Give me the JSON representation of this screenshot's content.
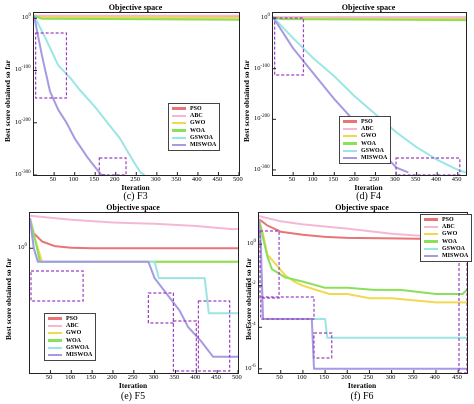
{
  "chart_data": [
    {
      "id": "F3",
      "type": "line",
      "title": "Objective space",
      "caption": "(c) F3",
      "xlabel": "Iteration",
      "ylabel": "Best score obtained so far",
      "xlim": [
        1,
        500
      ],
      "ylim_exponent": [
        -300,
        10
      ],
      "yscale": "log",
      "xticks": [
        "50",
        "100",
        "150",
        "200",
        "250",
        "300",
        "350",
        "400",
        "450",
        "500"
      ],
      "yticks": [
        "10^0",
        "10^-100",
        "10^-200",
        "10^-300"
      ],
      "ytick_values": [
        0,
        -100,
        -200,
        -300
      ],
      "legend": [
        "PSO",
        "ABC",
        "GWO",
        "WOA",
        "GSWOA",
        "MISWOA"
      ],
      "legend_position": "center-right",
      "series": [
        {
          "name": "PSO",
          "x": [
            1,
            10,
            500
          ],
          "y_exp": [
            5,
            3,
            3
          ]
        },
        {
          "name": "ABC",
          "x": [
            1,
            500
          ],
          "y_exp": [
            5,
            5
          ]
        },
        {
          "name": "GWO",
          "x": [
            1,
            15,
            500
          ],
          "y_exp": [
            5,
            2,
            1
          ]
        },
        {
          "name": "WOA",
          "x": [
            1,
            20,
            500
          ],
          "y_exp": [
            5,
            -1,
            -3
          ]
        },
        {
          "name": "GSWOA",
          "x": [
            1,
            30,
            60,
            90,
            110,
            150,
            180,
            210,
            240,
            260,
            270
          ],
          "y_exp": [
            5,
            -40,
            -90,
            -115,
            -135,
            -170,
            -200,
            -230,
            -270,
            -295,
            -300
          ]
        },
        {
          "name": "MISWOA",
          "x": [
            1,
            20,
            40,
            60,
            80,
            100,
            130,
            150,
            165,
            175
          ],
          "y_exp": [
            5,
            -70,
            -140,
            -175,
            -200,
            -230,
            -265,
            -285,
            -300,
            -300
          ]
        }
      ]
    },
    {
      "id": "F4",
      "type": "line",
      "title": "Objective space",
      "caption": "(d) F4",
      "xlabel": "Iteration",
      "ylabel": "Best score obtained so far",
      "xlim": [
        1,
        470
      ],
      "ylim_exponent": [
        -310,
        10
      ],
      "yscale": "log",
      "xticks": [
        "50",
        "100",
        "150",
        "200",
        "250",
        "300",
        "350",
        "400",
        "450"
      ],
      "yticks": [
        "10^0",
        "10^-100",
        "10^-200",
        "10^-300"
      ],
      "ytick_values": [
        0,
        -100,
        -200,
        -300
      ],
      "legend": [
        "PSO",
        "ABC",
        "GWO",
        "WOA",
        "GSWOA",
        "MISWOA"
      ],
      "legend_position": "center",
      "series": [
        {
          "name": "PSO",
          "x": [
            1,
            10,
            470
          ],
          "y_exp": [
            2,
            0,
            0
          ]
        },
        {
          "name": "ABC",
          "x": [
            1,
            470
          ],
          "y_exp": [
            2,
            2
          ]
        },
        {
          "name": "GWO",
          "x": [
            1,
            15,
            470
          ],
          "y_exp": [
            2,
            -1,
            -2
          ]
        },
        {
          "name": "WOA",
          "x": [
            1,
            20,
            470
          ],
          "y_exp": [
            2,
            -2,
            -4
          ]
        },
        {
          "name": "GSWOA",
          "x": [
            1,
            50,
            100,
            150,
            200,
            250,
            300,
            350,
            400,
            450,
            470
          ],
          "y_exp": [
            2,
            -40,
            -80,
            -115,
            -155,
            -190,
            -225,
            -255,
            -280,
            -300,
            -305
          ]
        },
        {
          "name": "MISWOA",
          "x": [
            1,
            50,
            100,
            150,
            200,
            250,
            300,
            330
          ],
          "y_exp": [
            2,
            -60,
            -110,
            -160,
            -205,
            -250,
            -295,
            -305
          ]
        }
      ]
    },
    {
      "id": "F5",
      "type": "line",
      "title": "Objective space",
      "caption": "(e) F5",
      "xlabel": "Iteration",
      "ylabel": "Best score obtained so far",
      "xlim": [
        1,
        500
      ],
      "ylim_exponent": [
        -4.6,
        1.3
      ],
      "yscale": "log",
      "xticks": [
        "50",
        "100",
        "150",
        "200",
        "250",
        "300",
        "350",
        "400",
        "450",
        "500"
      ],
      "yticks": [
        "10^0"
      ],
      "ytick_values": [
        0
      ],
      "legend": [
        "PSO",
        "ABC",
        "GWO",
        "WOA",
        "GSWOA",
        "MISWOA"
      ],
      "legend_position": "bottom-left",
      "series": [
        {
          "name": "PSO",
          "x": [
            1,
            10,
            30,
            60,
            100,
            150,
            500
          ],
          "y_exp": [
            1.1,
            0.55,
            0.25,
            0.08,
            0.02,
            0.0,
            0.0
          ]
        },
        {
          "name": "ABC",
          "x": [
            1,
            100,
            200,
            300,
            400,
            450,
            490,
            500
          ],
          "y_exp": [
            1.2,
            1.05,
            0.95,
            0.9,
            0.82,
            0.75,
            0.7,
            0.72
          ]
        },
        {
          "name": "GWO",
          "x": [
            1,
            10,
            20,
            30,
            500
          ],
          "y_exp": [
            1.1,
            0.5,
            0.0,
            -0.5,
            -0.5
          ]
        },
        {
          "name": "WOA",
          "x": [
            1,
            15,
            25,
            500
          ],
          "y_exp": [
            1.1,
            0.2,
            -0.5,
            -0.5
          ]
        },
        {
          "name": "GSWOA",
          "x": [
            1,
            10,
            20,
            300,
            310,
            420,
            430,
            500
          ],
          "y_exp": [
            1.1,
            0.0,
            -0.5,
            -0.5,
            -1.1,
            -1.1,
            -2.4,
            -2.4
          ]
        },
        {
          "name": "MISWOA",
          "x": [
            1,
            10,
            20,
            285,
            300,
            330,
            360,
            380,
            410,
            440,
            500
          ],
          "y_exp": [
            1.1,
            0.0,
            -0.5,
            -0.5,
            -1.1,
            -1.7,
            -2.3,
            -2.9,
            -3.4,
            -4.0,
            -4.0
          ]
        }
      ]
    },
    {
      "id": "F6",
      "type": "line",
      "title": "Objective space",
      "caption": "(f) F6",
      "xlabel": "Iteration",
      "ylabel": "Best score obtained so far",
      "xlim": [
        1,
        470
      ],
      "ylim_exponent": [
        -6.2,
        1.5
      ],
      "yscale": "log",
      "xticks": [
        "50",
        "100",
        "150",
        "200",
        "250",
        "300",
        "350",
        "400",
        "450"
      ],
      "yticks": [
        "10^0",
        "10^-2",
        "10^-4",
        "10^-6"
      ],
      "ytick_values": [
        0,
        -2,
        -4,
        -6
      ],
      "legend": [
        "PSO",
        "ABC",
        "GWO",
        "WOA",
        "GSWOA",
        "MISWOA"
      ],
      "legend_position": "top-right",
      "series": [
        {
          "name": "PSO",
          "x": [
            1,
            20,
            50,
            100,
            150,
            200,
            300,
            400,
            470
          ],
          "y_exp": [
            1.2,
            0.9,
            0.6,
            0.45,
            0.35,
            0.3,
            0.28,
            0.25,
            0.22
          ]
        },
        {
          "name": "ABC",
          "x": [
            1,
            50,
            100,
            150,
            200,
            300,
            400,
            470
          ],
          "y_exp": [
            1.35,
            1.1,
            0.95,
            0.85,
            0.75,
            0.5,
            0.35,
            0.3
          ]
        },
        {
          "name": "GWO",
          "x": [
            1,
            10,
            20,
            40,
            60,
            80,
            100,
            130,
            160,
            200,
            250,
            300,
            400,
            470
          ],
          "y_exp": [
            1.2,
            0.5,
            -0.5,
            -1.0,
            -1.5,
            -1.8,
            -2.0,
            -2.2,
            -2.4,
            -2.4,
            -2.6,
            -2.6,
            -2.8,
            -2.8
          ]
        },
        {
          "name": "WOA",
          "x": [
            1,
            10,
            20,
            30,
            60,
            100,
            150,
            200,
            260,
            320,
            400,
            460,
            470
          ],
          "y_exp": [
            1.2,
            0.3,
            -0.6,
            -1.2,
            -1.6,
            -1.8,
            -2.1,
            -2.1,
            -2.2,
            -2.2,
            -2.4,
            -2.4,
            -2.2
          ]
        },
        {
          "name": "GSWOA",
          "x": [
            1,
            5,
            10,
            150,
            155,
            470
          ],
          "y_exp": [
            1.2,
            0.0,
            -3.6,
            -3.6,
            -4.5,
            -4.5
          ]
        },
        {
          "name": "MISWOA",
          "x": [
            1,
            5,
            10,
            120,
            125,
            470
          ],
          "y_exp": [
            1.2,
            0.0,
            -3.6,
            -3.6,
            -6.0,
            -6.0
          ]
        }
      ]
    }
  ],
  "colors": {
    "PSO": "#e97476",
    "ABC": "#f6b7d5",
    "GWO": "#f2d84f",
    "WOA": "#8be05a",
    "GSWOA": "#9ae6e4",
    "MISWOA": "#a69ae3",
    "highlight_box": "#9b3fbf"
  }
}
